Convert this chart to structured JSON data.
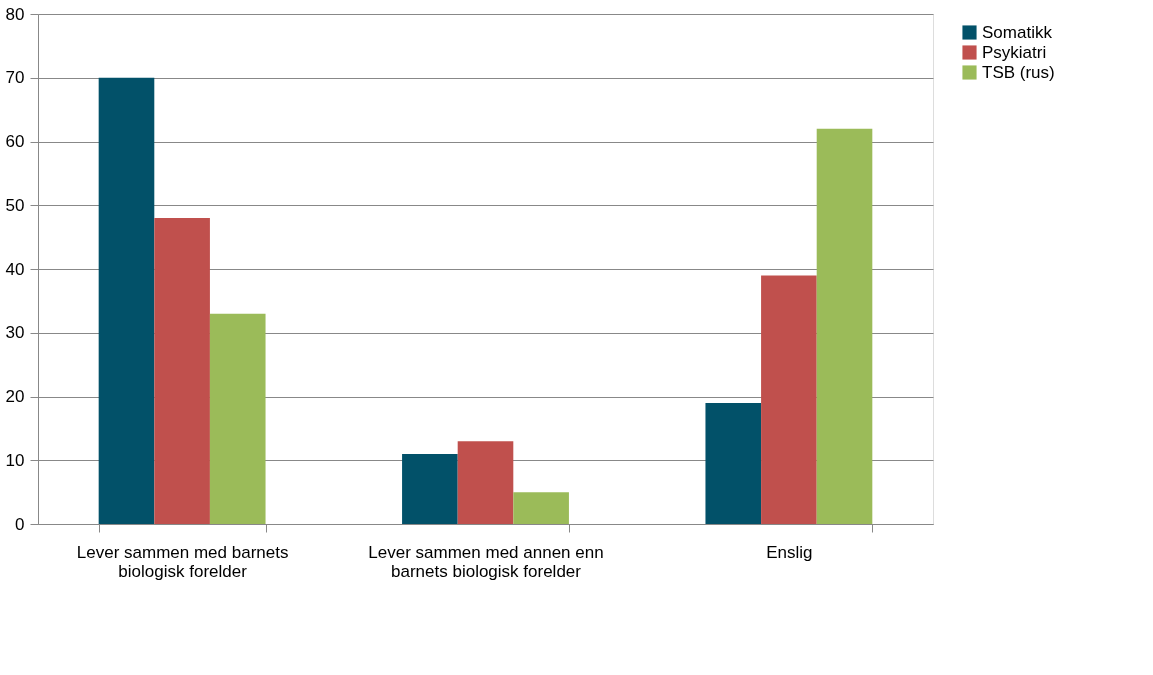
{
  "chart_data": {
    "type": "bar",
    "categories": [
      "Lever sammen med barnets  biologisk forelder",
      "Lever sammen med annen enn barnets biologisk forelder",
      "Enslig"
    ],
    "series": [
      {
        "name": "Somatikk",
        "color": "#025169",
        "values": [
          70,
          11,
          19
        ]
      },
      {
        "name": "Psykiatri",
        "color": "#c0504d",
        "values": [
          48,
          13,
          39
        ]
      },
      {
        "name": "TSB (rus)",
        "color": "#9bbb59",
        "values": [
          33,
          5,
          62
        ]
      }
    ],
    "ylim": [
      0,
      80
    ],
    "yticks": [
      0,
      10,
      20,
      30,
      40,
      50,
      60,
      70,
      80
    ],
    "grid": "y",
    "legend": "right"
  }
}
